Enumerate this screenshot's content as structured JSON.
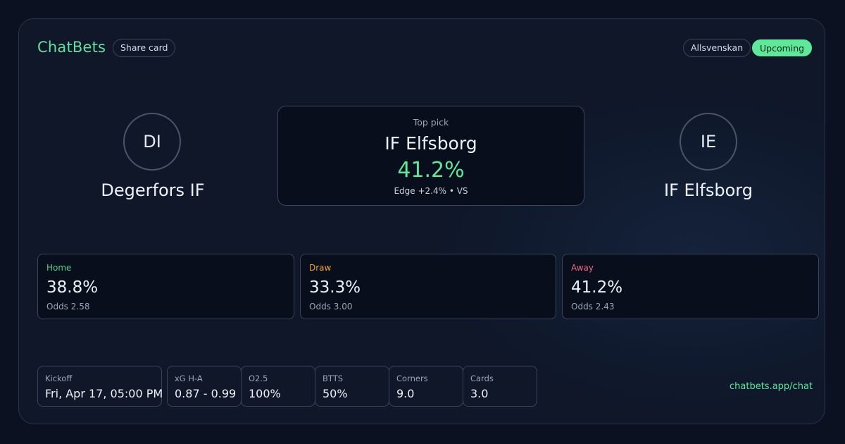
{
  "header": {
    "brand": "ChatBets",
    "share_label": "Share card",
    "league": "Allsvenskan",
    "status": "Upcoming"
  },
  "home_team": {
    "initials": "DI",
    "name": "Degerfors IF"
  },
  "away_team": {
    "initials": "IE",
    "name": "IF Elfsborg"
  },
  "top_pick": {
    "label": "Top pick",
    "team": "IF Elfsborg",
    "probability": "41.2%",
    "edge": "Edge +2.4% • VS"
  },
  "outcomes": [
    {
      "label": "Home",
      "probability": "38.8%",
      "odds": "Odds 2.58",
      "color": "#4fd18a"
    },
    {
      "label": "Draw",
      "probability": "33.3%",
      "odds": "Odds 3.00",
      "color": "#f0a23a"
    },
    {
      "label": "Away",
      "probability": "41.2%",
      "odds": "Odds 2.43",
      "color": "#f06a7a"
    }
  ],
  "stats": [
    {
      "label": "Kickoff",
      "value": "Fri, Apr 17, 05:00 PM"
    },
    {
      "label": "xG H-A",
      "value": "0.87 - 0.99"
    },
    {
      "label": "O2.5",
      "value": "100%"
    },
    {
      "label": "BTTS",
      "value": "50%"
    },
    {
      "label": "Corners",
      "value": "9.0"
    },
    {
      "label": "Cards",
      "value": "3.0"
    }
  ],
  "footer": {
    "link": "chatbets.app/chat"
  },
  "colors": {
    "accent": "#5ee89a",
    "background": "#0f1729"
  }
}
